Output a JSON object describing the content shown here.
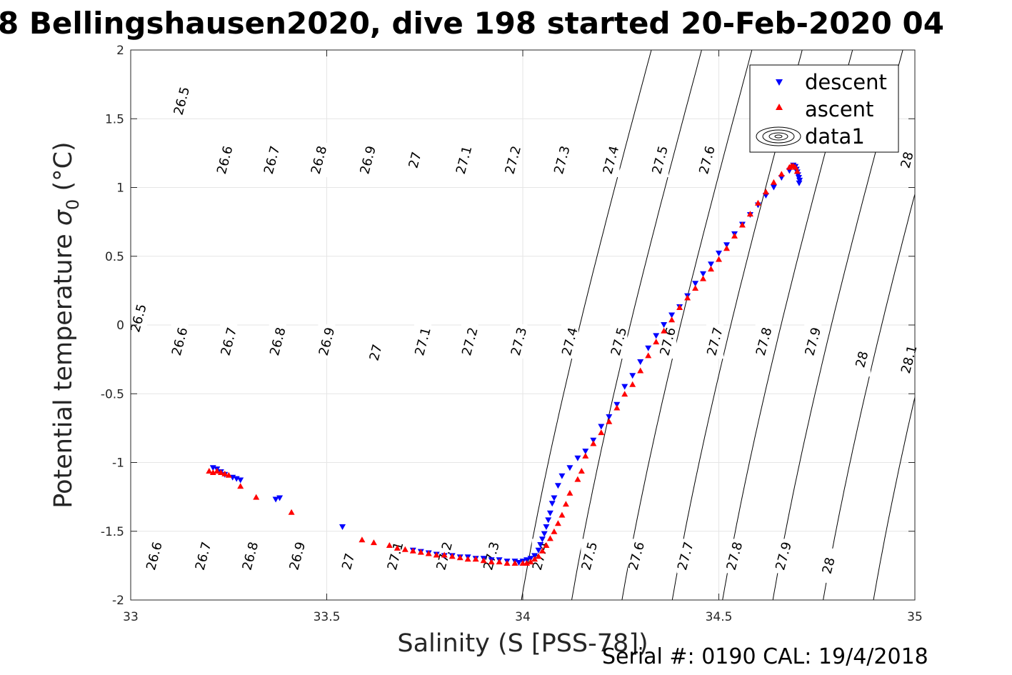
{
  "chart_data": {
    "type": "scatter",
    "title": "8 Bellingshausen2020, dive 198 started 20-Feb-2020 04",
    "xlabel": "Salinity (S [PSS-78])",
    "ylabel_main": "Potential temperature ",
    "ylabel_sigma": "σ",
    "ylabel_sub": "0",
    "ylabel_unit": " (°C)",
    "xlim": [
      33,
      35
    ],
    "ylim": [
      -2,
      2
    ],
    "xticks": [
      "33",
      "33.5",
      "34",
      "34.5",
      "35"
    ],
    "yticks": [
      "-2",
      "-1.5",
      "-1",
      "-0.5",
      "0",
      "0.5",
      "1",
      "1.5",
      "2"
    ],
    "grid": true,
    "legend_position": "top-right",
    "legend": [
      {
        "label": "descent",
        "marker": "triangle-down",
        "color": "#0000ff"
      },
      {
        "label": "ascent",
        "marker": "triangle-up",
        "color": "#ff0000"
      },
      {
        "label": "data1",
        "marker": "contour",
        "color": "#000000"
      }
    ],
    "density_contours": [
      "26.5",
      "26.6",
      "26.7",
      "26.8",
      "26.9",
      "27",
      "27.1",
      "27.2",
      "27.3",
      "27.4",
      "27.5",
      "27.6",
      "27.7",
      "27.8",
      "27.9",
      "28",
      "28.1"
    ],
    "contour_labels": [
      {
        "text": "26.5",
        "s": 33.13,
        "t": 1.63
      },
      {
        "text": "26.6",
        "s": 33.24,
        "t": 1.2
      },
      {
        "text": "26.7",
        "s": 33.36,
        "t": 1.2
      },
      {
        "text": "26.8",
        "s": 33.48,
        "t": 1.2
      },
      {
        "text": "26.9",
        "s": 33.605,
        "t": 1.2
      },
      {
        "text": "27",
        "s": 33.725,
        "t": 1.2
      },
      {
        "text": "27.1",
        "s": 33.85,
        "t": 1.2
      },
      {
        "text": "27.2",
        "s": 33.975,
        "t": 1.2
      },
      {
        "text": "27.3",
        "s": 34.1,
        "t": 1.2
      },
      {
        "text": "27.4",
        "s": 34.225,
        "t": 1.2
      },
      {
        "text": "27.5",
        "s": 34.35,
        "t": 1.2
      },
      {
        "text": "27.6",
        "s": 34.47,
        "t": 1.2
      },
      {
        "text": "28",
        "s": 34.98,
        "t": 1.2
      },
      {
        "text": "26.5",
        "s": 33.02,
        "t": 0.05
      },
      {
        "text": "26.6",
        "s": 33.125,
        "t": -0.12
      },
      {
        "text": "26.7",
        "s": 33.25,
        "t": -0.12
      },
      {
        "text": "26.8",
        "s": 33.375,
        "t": -0.12
      },
      {
        "text": "26.9",
        "s": 33.5,
        "t": -0.12
      },
      {
        "text": "27",
        "s": 33.625,
        "t": -0.2
      },
      {
        "text": "27.1",
        "s": 33.745,
        "t": -0.12
      },
      {
        "text": "27.2",
        "s": 33.865,
        "t": -0.12
      },
      {
        "text": "27.3",
        "s": 33.99,
        "t": -0.12
      },
      {
        "text": "27.4",
        "s": 34.12,
        "t": -0.12
      },
      {
        "text": "27.5",
        "s": 34.245,
        "t": -0.12
      },
      {
        "text": "27.6",
        "s": 34.37,
        "t": -0.12
      },
      {
        "text": "27.7",
        "s": 34.49,
        "t": -0.12
      },
      {
        "text": "27.8",
        "s": 34.615,
        "t": -0.12
      },
      {
        "text": "27.9",
        "s": 34.74,
        "t": -0.12
      },
      {
        "text": "28",
        "s": 34.865,
        "t": -0.25
      },
      {
        "text": "28.1",
        "s": 34.985,
        "t": -0.25
      },
      {
        "text": "26.6",
        "s": 33.06,
        "t": -1.68
      },
      {
        "text": "26.7",
        "s": 33.185,
        "t": -1.68
      },
      {
        "text": "26.8",
        "s": 33.305,
        "t": -1.68
      },
      {
        "text": "26.9",
        "s": 33.425,
        "t": -1.68
      },
      {
        "text": "27",
        "s": 33.555,
        "t": -1.72
      },
      {
        "text": "27.1",
        "s": 33.675,
        "t": -1.68
      },
      {
        "text": "27.2",
        "s": 33.8,
        "t": -1.68
      },
      {
        "text": "27.3",
        "s": 33.92,
        "t": -1.68
      },
      {
        "text": "27.4",
        "s": 34.045,
        "t": -1.68
      },
      {
        "text": "27.5",
        "s": 34.17,
        "t": -1.68
      },
      {
        "text": "27.6",
        "s": 34.29,
        "t": -1.68
      },
      {
        "text": "27.7",
        "s": 34.415,
        "t": -1.68
      },
      {
        "text": "27.8",
        "s": 34.54,
        "t": -1.68
      },
      {
        "text": "27.9",
        "s": 34.665,
        "t": -1.68
      },
      {
        "text": "28",
        "s": 34.78,
        "t": -1.75
      }
    ],
    "series": [
      {
        "name": "descent",
        "marker": "triangle-down",
        "color": "#0000ff",
        "x": [
          34.69,
          34.695,
          34.698,
          34.7,
          34.702,
          34.704,
          34.706,
          34.705,
          34.68,
          34.66,
          34.64,
          34.62,
          34.6,
          34.58,
          34.56,
          34.54,
          34.52,
          34.5,
          34.48,
          34.46,
          34.44,
          34.42,
          34.4,
          34.38,
          34.36,
          34.34,
          34.32,
          34.3,
          34.28,
          34.26,
          34.24,
          34.22,
          34.2,
          34.18,
          34.16,
          34.14,
          34.12,
          34.1,
          34.09,
          34.08,
          34.075,
          34.07,
          34.065,
          34.06,
          34.055,
          34.05,
          34.045,
          34.04,
          34.03,
          34.02,
          34.01,
          34.0,
          33.99,
          33.98,
          33.96,
          33.94,
          33.92,
          33.9,
          33.88,
          33.86,
          33.84,
          33.82,
          33.8,
          33.78,
          33.76,
          33.74,
          33.72,
          33.54,
          33.38,
          33.37,
          33.28,
          33.27,
          33.26,
          33.24,
          33.23,
          33.22,
          33.21
        ],
        "y": [
          1.16,
          1.15,
          1.13,
          1.11,
          1.09,
          1.07,
          1.05,
          1.03,
          1.12,
          1.07,
          1.0,
          0.94,
          0.87,
          0.8,
          0.73,
          0.66,
          0.58,
          0.52,
          0.44,
          0.37,
          0.3,
          0.21,
          0.13,
          0.07,
          0.0,
          -0.08,
          -0.17,
          -0.27,
          -0.37,
          -0.45,
          -0.58,
          -0.67,
          -0.74,
          -0.84,
          -0.92,
          -0.97,
          -1.04,
          -1.1,
          -1.17,
          -1.26,
          -1.3,
          -1.37,
          -1.42,
          -1.47,
          -1.52,
          -1.56,
          -1.6,
          -1.64,
          -1.68,
          -1.7,
          -1.71,
          -1.72,
          -1.73,
          -1.72,
          -1.72,
          -1.71,
          -1.71,
          -1.7,
          -1.7,
          -1.69,
          -1.69,
          -1.68,
          -1.68,
          -1.67,
          -1.66,
          -1.65,
          -1.64,
          -1.47,
          -1.26,
          -1.27,
          -1.13,
          -1.12,
          -1.11,
          -1.09,
          -1.07,
          -1.05,
          -1.04
        ]
      },
      {
        "name": "ascent",
        "marker": "triangle-up",
        "color": "#ff0000",
        "x": [
          34.7,
          34.695,
          34.69,
          34.685,
          34.68,
          34.66,
          34.64,
          34.62,
          34.6,
          34.58,
          34.56,
          34.54,
          34.52,
          34.5,
          34.48,
          34.46,
          34.44,
          34.42,
          34.4,
          34.38,
          34.36,
          34.34,
          34.32,
          34.3,
          34.28,
          34.26,
          34.24,
          34.22,
          34.2,
          34.18,
          34.16,
          34.15,
          34.14,
          34.12,
          34.11,
          34.1,
          34.09,
          34.08,
          34.07,
          34.06,
          34.05,
          34.04,
          34.03,
          34.02,
          34.01,
          34.0,
          33.98,
          33.96,
          33.94,
          33.92,
          33.9,
          33.88,
          33.86,
          33.84,
          33.82,
          33.8,
          33.78,
          33.76,
          33.74,
          33.72,
          33.7,
          33.68,
          33.66,
          33.62,
          33.59,
          33.41,
          33.32,
          33.28,
          33.25,
          33.24,
          33.23,
          33.22,
          33.21,
          33.2
        ],
        "y": [
          1.12,
          1.15,
          1.16,
          1.16,
          1.15,
          1.1,
          1.04,
          0.97,
          0.89,
          0.81,
          0.73,
          0.65,
          0.56,
          0.48,
          0.41,
          0.34,
          0.27,
          0.2,
          0.13,
          0.04,
          -0.04,
          -0.12,
          -0.22,
          -0.33,
          -0.43,
          -0.5,
          -0.6,
          -0.7,
          -0.78,
          -0.86,
          -0.95,
          -1.06,
          -1.12,
          -1.22,
          -1.3,
          -1.38,
          -1.44,
          -1.5,
          -1.55,
          -1.6,
          -1.64,
          -1.68,
          -1.7,
          -1.72,
          -1.73,
          -1.73,
          -1.73,
          -1.73,
          -1.72,
          -1.72,
          -1.71,
          -1.7,
          -1.7,
          -1.69,
          -1.68,
          -1.67,
          -1.67,
          -1.66,
          -1.65,
          -1.64,
          -1.63,
          -1.62,
          -1.6,
          -1.58,
          -1.56,
          -1.36,
          -1.25,
          -1.17,
          -1.09,
          -1.08,
          -1.07,
          -1.06,
          -1.07,
          -1.06
        ]
      }
    ]
  },
  "footer": {
    "serial": "Serial #: 0190  CAL: 19/4/2018"
  }
}
